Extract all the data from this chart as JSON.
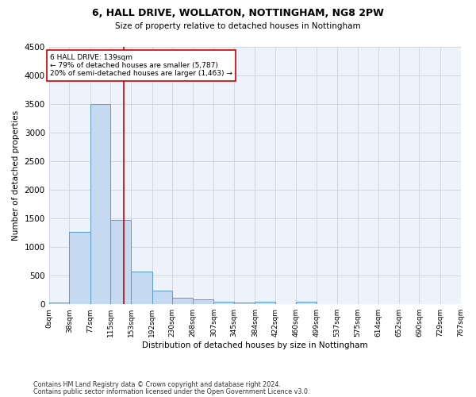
{
  "title1": "6, HALL DRIVE, WOLLATON, NOTTINGHAM, NG8 2PW",
  "title2": "Size of property relative to detached houses in Nottingham",
  "xlabel": "Distribution of detached houses by size in Nottingham",
  "ylabel": "Number of detached properties",
  "bin_labels": [
    "0sqm",
    "38sqm",
    "77sqm",
    "115sqm",
    "153sqm",
    "192sqm",
    "230sqm",
    "268sqm",
    "307sqm",
    "345sqm",
    "384sqm",
    "422sqm",
    "460sqm",
    "499sqm",
    "537sqm",
    "575sqm",
    "614sqm",
    "652sqm",
    "690sqm",
    "729sqm",
    "767sqm"
  ],
  "bar_values": [
    30,
    1270,
    3500,
    1480,
    575,
    240,
    110,
    80,
    50,
    30,
    50,
    0,
    40,
    0,
    0,
    0,
    0,
    0,
    0,
    0
  ],
  "bar_color": "#c5d9f0",
  "bar_edge_color": "#5b9bd5",
  "bin_edges": [
    0,
    38,
    77,
    115,
    153,
    192,
    230,
    268,
    307,
    345,
    384,
    422,
    460,
    499,
    537,
    575,
    614,
    652,
    690,
    729,
    767
  ],
  "property_line_x": 139,
  "x_min": 0,
  "x_max": 767,
  "y_min": 0,
  "y_max": 4500,
  "annotation_title": "6 HALL DRIVE: 139sqm",
  "annotation_line1": "← 79% of detached houses are smaller (5,787)",
  "annotation_line2": "20% of semi-detached houses are larger (1,463) →",
  "vline_color": "#cc0000",
  "annotation_box_color": "#cc0000",
  "footnote1": "Contains HM Land Registry data © Crown copyright and database right 2024.",
  "footnote2": "Contains public sector information licensed under the Open Government Licence v3.0.",
  "grid_color": "#d0d8e8",
  "background_color": "#eef2fa",
  "yticks": [
    0,
    500,
    1000,
    1500,
    2000,
    2500,
    3000,
    3500,
    4000,
    4500
  ]
}
